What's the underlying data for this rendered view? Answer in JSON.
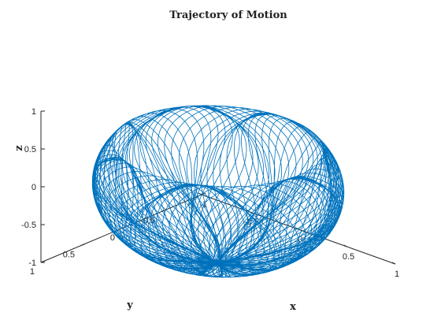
{
  "chart_data": {
    "type": "line",
    "dimensions": "3d",
    "title": "Trajectory of Motion",
    "xlabel": "x",
    "ylabel": "y",
    "zlabel": "z",
    "xlim": [
      -1,
      1
    ],
    "ylim": [
      -1,
      1
    ],
    "zlim": [
      -1,
      1
    ],
    "x_ticks": [
      "-1",
      "-0.5",
      "0",
      "0.5",
      "1"
    ],
    "y_ticks": [
      "-1",
      "-0.5",
      "0",
      "0.5",
      "1"
    ],
    "z_ticks": [
      "-1",
      "-0.5",
      "0",
      "0.5",
      "1"
    ],
    "grid": false,
    "view": {
      "azimuth_deg": -37.5,
      "elevation_deg": 30
    },
    "series": [
      {
        "color": "#0072BD",
        "shape": "spherical bowl trajectory, radius about 1",
        "z_range": [
          -1,
          0.55
        ],
        "loops": 110
      }
    ]
  }
}
